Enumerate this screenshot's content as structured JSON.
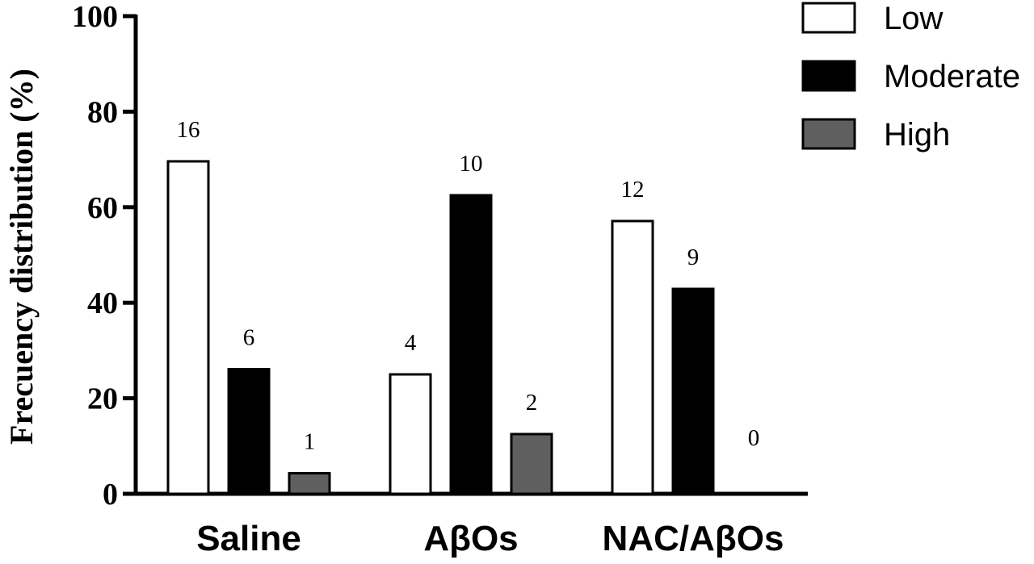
{
  "chart_data": {
    "type": "bar",
    "ylabel": "Frecuency distribution (%)",
    "xlabel": "",
    "ylim": [
      0,
      100
    ],
    "yticks": [
      0,
      20,
      40,
      60,
      80,
      100
    ],
    "categories": [
      "Saline",
      "AβOs",
      "NAC/AβOs"
    ],
    "series": [
      {
        "name": "Low",
        "color": "#ffffff",
        "values": [
          69.6,
          25.0,
          57.1
        ],
        "labels": [
          "16",
          "4",
          "12"
        ]
      },
      {
        "name": "Moderate",
        "color": "#000000",
        "values": [
          26.1,
          62.5,
          42.9
        ],
        "labels": [
          "6",
          "10",
          "9"
        ]
      },
      {
        "name": "High",
        "color": "#5f5f5f",
        "values": [
          4.3,
          12.5,
          0
        ],
        "labels": [
          "1",
          "2",
          "0"
        ]
      }
    ],
    "legend_position": "top-right",
    "grid": false
  }
}
